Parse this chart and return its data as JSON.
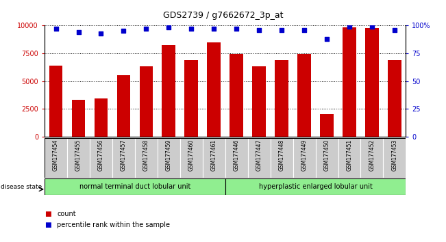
{
  "title": "GDS2739 / g7662672_3p_at",
  "samples": [
    "GSM177454",
    "GSM177455",
    "GSM177456",
    "GSM177457",
    "GSM177458",
    "GSM177459",
    "GSM177460",
    "GSM177461",
    "GSM177446",
    "GSM177447",
    "GSM177448",
    "GSM177449",
    "GSM177450",
    "GSM177451",
    "GSM177452",
    "GSM177453"
  ],
  "counts": [
    6400,
    3300,
    3450,
    5500,
    6300,
    8200,
    6900,
    8500,
    7450,
    6300,
    6850,
    7450,
    2000,
    9800,
    9750,
    6850
  ],
  "percentiles": [
    97,
    94,
    93,
    95,
    97,
    98,
    97,
    97,
    97,
    96,
    96,
    96,
    88,
    99,
    99,
    96
  ],
  "ylim_left": [
    0,
    10000
  ],
  "ylim_right": [
    0,
    100
  ],
  "yticks_left": [
    0,
    2500,
    5000,
    7500,
    10000
  ],
  "yticks_right": [
    0,
    25,
    50,
    75,
    100
  ],
  "bar_color": "#cc0000",
  "dot_color": "#0000cc",
  "group1_label": "normal terminal duct lobular unit",
  "group2_label": "hyperplastic enlarged lobular unit",
  "group1_count": 8,
  "group2_count": 8,
  "group1_color": "#90ee90",
  "group2_color": "#90ee90",
  "disease_state_label": "disease state",
  "legend_count_label": "count",
  "legend_percentile_label": "percentile rank within the sample",
  "background_color": "#ffffff",
  "label_bg_color": "#cccccc"
}
